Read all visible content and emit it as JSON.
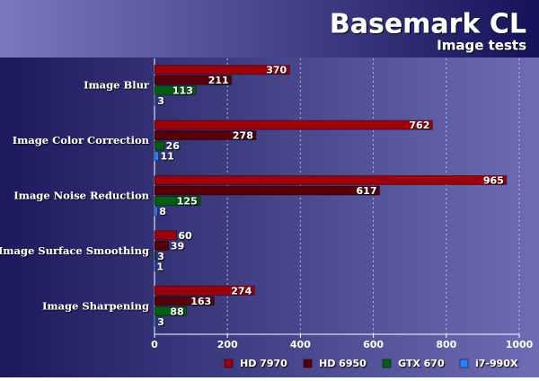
{
  "chart_data": {
    "type": "bar",
    "orientation": "horizontal",
    "title": "Basemark CL",
    "subtitle": "Image tests",
    "categories": [
      "Image Blur",
      "Image Color Correction",
      "Image Noise Reduction",
      "Image Surface Smoothing",
      "Image Sharpening"
    ],
    "series": [
      {
        "name": "HD 7970",
        "color": "#a00008",
        "values": [
          370,
          762,
          965,
          60,
          274
        ]
      },
      {
        "name": "HD 6950",
        "color": "#580008",
        "values": [
          211,
          278,
          617,
          39,
          163
        ]
      },
      {
        "name": "GTX 670",
        "color": "#006010",
        "values": [
          113,
          26,
          125,
          3,
          88
        ]
      },
      {
        "name": "i7-990X",
        "color": "#2a80ff",
        "values": [
          3,
          11,
          8,
          1,
          3
        ]
      }
    ],
    "xlim": [
      0,
      1000
    ],
    "xticks": [
      0,
      200,
      400,
      600,
      800,
      1000
    ],
    "grid": true,
    "legend": "bottom"
  }
}
